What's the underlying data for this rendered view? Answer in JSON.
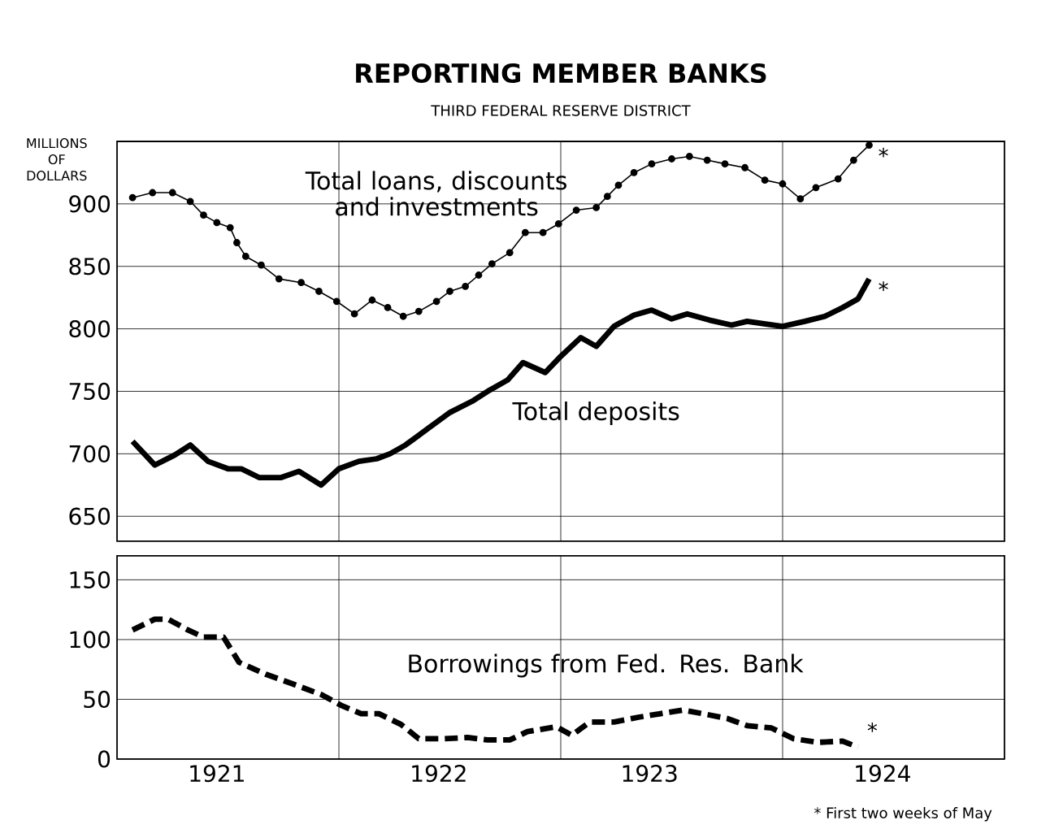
{
  "chart_data": [
    {
      "type": "line",
      "title": "REPORTING MEMBER BANKS",
      "subtitle": "THIRD FEDERAL RESERVE DISTRICT",
      "ylabel": "MILLIONS OF DOLLARS",
      "xlim": [
        1921,
        1925
      ],
      "xticks": [
        {
          "value": 1922,
          "label": null
        },
        {
          "value": 1923,
          "label": null
        },
        {
          "value": 1924,
          "label": null
        }
      ],
      "ylim": [
        630,
        950
      ],
      "yticks": [
        650,
        700,
        750,
        800,
        850,
        900
      ],
      "grid": true,
      "tick_labels": "y",
      "series": [
        {
          "name": "Total loans, discounts and investments",
          "color": "#000000",
          "marker": "circle",
          "line_style": "solid",
          "x": [
            1921.07,
            1921.16,
            1921.25,
            1921.33,
            1921.39,
            1921.45,
            1921.51,
            1921.54,
            1921.58,
            1921.65,
            1921.73,
            1921.83,
            1921.91,
            1921.99,
            1922.07,
            1922.15,
            1922.22,
            1922.29,
            1922.36,
            1922.44,
            1922.5,
            1922.57,
            1922.63,
            1922.69,
            1922.77,
            1922.84,
            1922.92,
            1922.99,
            1923.07,
            1923.16,
            1923.21,
            1923.26,
            1923.33,
            1923.41,
            1923.5,
            1923.58,
            1923.66,
            1923.74,
            1923.83,
            1923.92,
            1924.0,
            1924.08,
            1924.15,
            1924.25,
            1924.32,
            1924.39
          ],
          "values": [
            905,
            909,
            909,
            902,
            891,
            885,
            881,
            869,
            858,
            851,
            840,
            837,
            830,
            822,
            812,
            823,
            817,
            810,
            814,
            822,
            830,
            834,
            843,
            852,
            861,
            877,
            877,
            884,
            895,
            897,
            906,
            915,
            925,
            932,
            936,
            938,
            935,
            932,
            929,
            919,
            916,
            904,
            913,
            920,
            935,
            947
          ]
        },
        {
          "name": "Total deposits",
          "color": "#000000",
          "marker": "none",
          "line_style": "solid",
          "x": [
            1921.07,
            1921.17,
            1921.26,
            1921.33,
            1921.41,
            1921.5,
            1921.56,
            1921.64,
            1921.74,
            1921.82,
            1921.92,
            1922.0,
            1922.09,
            1922.17,
            1922.23,
            1922.3,
            1922.4,
            1922.5,
            1922.6,
            1922.68,
            1922.76,
            1922.83,
            1922.93,
            1923.0,
            1923.09,
            1923.16,
            1923.24,
            1923.33,
            1923.41,
            1923.5,
            1923.57,
            1923.67,
            1923.77,
            1923.84,
            1923.92,
            1924.0,
            1924.1,
            1924.19,
            1924.27,
            1924.34,
            1924.39
          ],
          "values": [
            710,
            691,
            699,
            707,
            694,
            688,
            688,
            681,
            681,
            686,
            675,
            688,
            694,
            696,
            700,
            707,
            720,
            733,
            742,
            751,
            759,
            773,
            765,
            778,
            793,
            786,
            802,
            811,
            815,
            808,
            812,
            807,
            803,
            806,
            804,
            802,
            806,
            810,
            817,
            824,
            840
          ]
        }
      ],
      "annotations": [
        "*",
        "*"
      ]
    },
    {
      "type": "line",
      "xlim": [
        1921,
        1925
      ],
      "xticks": [
        {
          "value": 1921.45,
          "label": "1921"
        },
        {
          "value": 1922,
          "label": null
        },
        {
          "value": 1922.45,
          "label": "1922"
        },
        {
          "value": 1923,
          "label": null
        },
        {
          "value": 1923.4,
          "label": "1923"
        },
        {
          "value": 1924,
          "label": null
        },
        {
          "value": 1924.45,
          "label": "1924"
        }
      ],
      "ylim": [
        0,
        170
      ],
      "yticks": [
        0,
        50,
        100,
        150
      ],
      "grid": true,
      "series": [
        {
          "name": "Borrowings from Fed. Res. Bank",
          "color": "#000000",
          "marker": "none",
          "line_style": "dashed",
          "x": [
            1921.07,
            1921.17,
            1921.23,
            1921.32,
            1921.39,
            1921.48,
            1921.55,
            1921.67,
            1921.79,
            1921.92,
            1922.01,
            1922.1,
            1922.18,
            1922.28,
            1922.36,
            1922.47,
            1922.58,
            1922.67,
            1922.77,
            1922.85,
            1922.98,
            1923.05,
            1923.13,
            1923.24,
            1923.35,
            1923.45,
            1923.55,
            1923.64,
            1923.75,
            1923.84,
            1923.95,
            1924.05,
            1924.16,
            1924.27,
            1924.34
          ],
          "values": [
            108,
            117,
            117,
            108,
            102,
            102,
            81,
            71,
            63,
            54,
            45,
            38,
            38,
            29,
            17,
            17,
            18,
            16,
            16,
            23,
            27,
            20,
            31,
            31,
            35,
            38,
            41,
            38,
            34,
            28,
            26,
            17,
            14,
            15,
            10
          ]
        }
      ],
      "annotations": [
        "*",
        "* First two weeks of May"
      ]
    }
  ]
}
